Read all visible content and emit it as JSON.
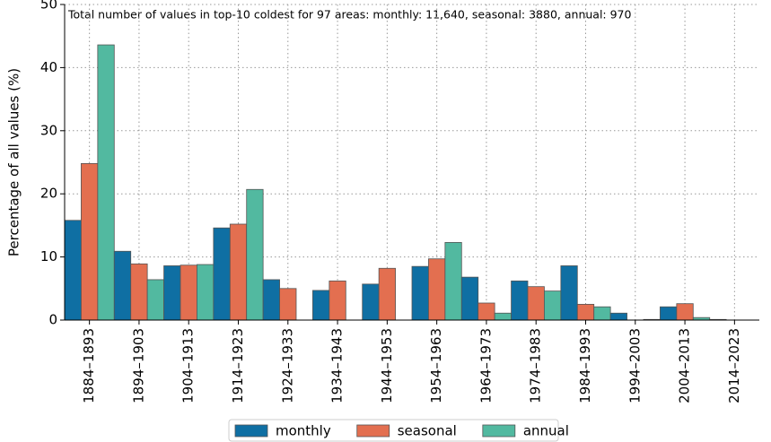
{
  "chart_data": {
    "type": "bar",
    "annotation": "Total number of values in top-10 coldest for 97 areas: monthly: 11,640, seasonal: 3880, annual: 970",
    "ylabel": "Percentage of all values (%)",
    "categories": [
      "1884–1893",
      "1894–1903",
      "1904–1913",
      "1914–1923",
      "1924–1933",
      "1934–1943",
      "1944–1953",
      "1954–1963",
      "1964–1973",
      "1974–1983",
      "1984–1993",
      "1994–2003",
      "2004–2013",
      "2014–2023"
    ],
    "series": [
      {
        "name": "monthly",
        "color": "#0f6fa3",
        "values": [
          15.8,
          10.9,
          8.6,
          14.6,
          6.4,
          4.7,
          5.7,
          8.5,
          6.8,
          6.2,
          8.6,
          1.1,
          2.1,
          0.1
        ]
      },
      {
        "name": "seasonal",
        "color": "#e36f50",
        "values": [
          24.8,
          8.9,
          8.7,
          15.2,
          5.0,
          6.2,
          8.2,
          9.7,
          2.7,
          5.3,
          2.5,
          0,
          2.6,
          0
        ]
      },
      {
        "name": "annual",
        "color": "#52b9a0",
        "values": [
          43.6,
          6.4,
          8.8,
          20.7,
          0,
          0,
          0,
          12.3,
          1.1,
          4.6,
          2.1,
          0.1,
          0.4,
          0
        ]
      }
    ],
    "ylim": [
      0,
      50
    ],
    "yticks": [
      0,
      10,
      20,
      30,
      40,
      50
    ],
    "grid": true,
    "legend": "bottom"
  }
}
